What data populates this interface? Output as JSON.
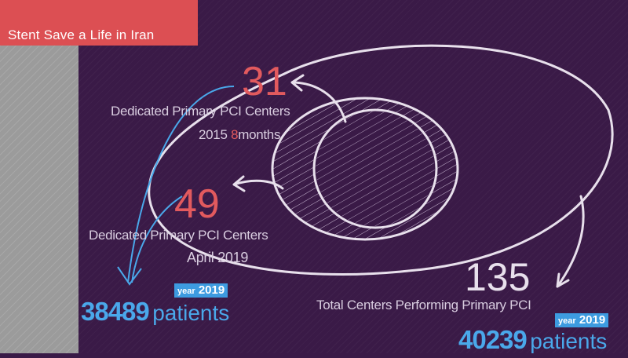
{
  "header": {
    "title": "Stent Save a Life in Iran"
  },
  "colors": {
    "background": "#3a1a47",
    "header": "#dc4f53",
    "accent_red": "#e25a5e",
    "accent_blue": "#4aa8ea",
    "side_panel": "#9b9b9b"
  },
  "stage_2015": {
    "count": "31",
    "label": "Dedicated Primary PCI Centers",
    "year": "2015",
    "duration_num": "8",
    "duration_unit": "months"
  },
  "stage_2019": {
    "count": "49",
    "label": "Dedicated Primary PCI Centers",
    "date": "April 2019",
    "patients": "38489",
    "patients_label": "patients",
    "year_word": "year",
    "year": "2019"
  },
  "total": {
    "count": "135",
    "label": "Total Centers Performing Primary PCI",
    "patients": "40239",
    "patients_label": "patients",
    "year_word": "year",
    "year": "2019"
  }
}
